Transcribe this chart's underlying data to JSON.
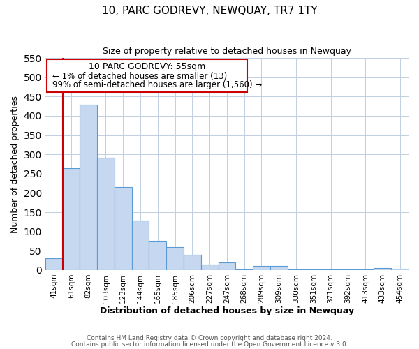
{
  "title": "10, PARC GODREVY, NEWQUAY, TR7 1TY",
  "subtitle": "Size of property relative to detached houses in Newquay",
  "xlabel": "Distribution of detached houses by size in Newquay",
  "ylabel": "Number of detached properties",
  "bin_labels": [
    "41sqm",
    "61sqm",
    "82sqm",
    "103sqm",
    "123sqm",
    "144sqm",
    "165sqm",
    "185sqm",
    "206sqm",
    "227sqm",
    "247sqm",
    "268sqm",
    "289sqm",
    "309sqm",
    "330sqm",
    "351sqm",
    "371sqm",
    "392sqm",
    "413sqm",
    "433sqm",
    "454sqm"
  ],
  "bar_heights": [
    30,
    265,
    428,
    292,
    215,
    128,
    76,
    59,
    40,
    15,
    20,
    2,
    10,
    10,
    2,
    2,
    1,
    2,
    1,
    5,
    3
  ],
  "bar_color": "#c5d8f0",
  "bar_edge_color": "#5b9bd5",
  "ylim": [
    0,
    550
  ],
  "yticks": [
    0,
    50,
    100,
    150,
    200,
    250,
    300,
    350,
    400,
    450,
    500,
    550
  ],
  "marker_color": "#cc0000",
  "annotation_title": "10 PARC GODREVY: 55sqm",
  "annotation_line1": "← 1% of detached houses are smaller (13)",
  "annotation_line2": "99% of semi-detached houses are larger (1,560) →",
  "annotation_box_color": "#cc0000",
  "footer_line1": "Contains HM Land Registry data © Crown copyright and database right 2024.",
  "footer_line2": "Contains public sector information licensed under the Open Government Licence v 3.0.",
  "background_color": "#ffffff",
  "grid_color": "#c0cfe0"
}
